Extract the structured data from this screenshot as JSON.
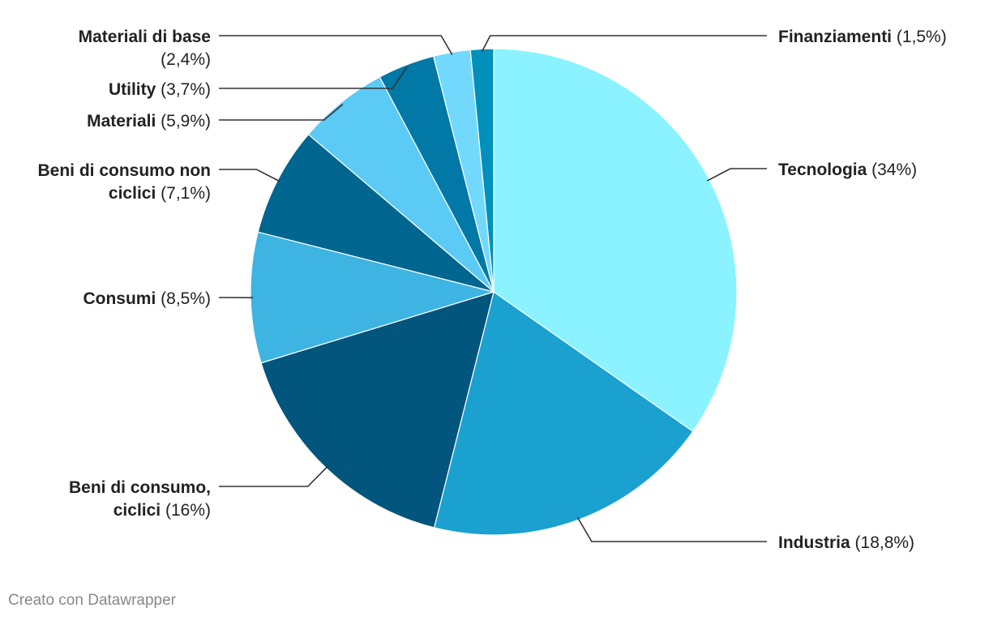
{
  "chart_data": {
    "type": "pie",
    "slices": [
      {
        "label_lines": [
          [
            "Tecnologia",
            " (34%)"
          ]
        ],
        "value": 34,
        "color": "#8af3ff"
      },
      {
        "label_lines": [
          [
            "Industria",
            " (18,8%)"
          ]
        ],
        "value": 18.8,
        "color": "#1aa1d0"
      },
      {
        "label_lines": [
          [
            "Beni di consumo,",
            ""
          ],
          [
            "ciclici",
            " (16%)"
          ]
        ],
        "value": 16,
        "color": "#02557d"
      },
      {
        "label_lines": [
          [
            "Consumi",
            " (8,5%)"
          ]
        ],
        "value": 8.5,
        "color": "#3db4e2"
      },
      {
        "label_lines": [
          [
            "Beni di consumo non",
            ""
          ],
          [
            "ciclici",
            " (7,1%)"
          ]
        ],
        "value": 7.1,
        "color": "#01668f"
      },
      {
        "label_lines": [
          [
            "Materiali",
            " (5,9%)"
          ]
        ],
        "value": 5.9,
        "color": "#5bcaf5"
      },
      {
        "label_lines": [
          [
            "Utility",
            " (3,7%)"
          ]
        ],
        "value": 3.7,
        "color": "#0178a5"
      },
      {
        "label_lines": [
          [
            "Materiali di base",
            ""
          ],
          [
            "",
            "(2,4%)"
          ]
        ],
        "value": 2.4,
        "color": "#72d9fc"
      },
      {
        "label_lines": [
          [
            "Finanziamenti",
            " (1,5%)"
          ]
        ],
        "value": 1.5,
        "color": "#0090bc"
      }
    ]
  },
  "footer": "Creato con Datawrapper"
}
